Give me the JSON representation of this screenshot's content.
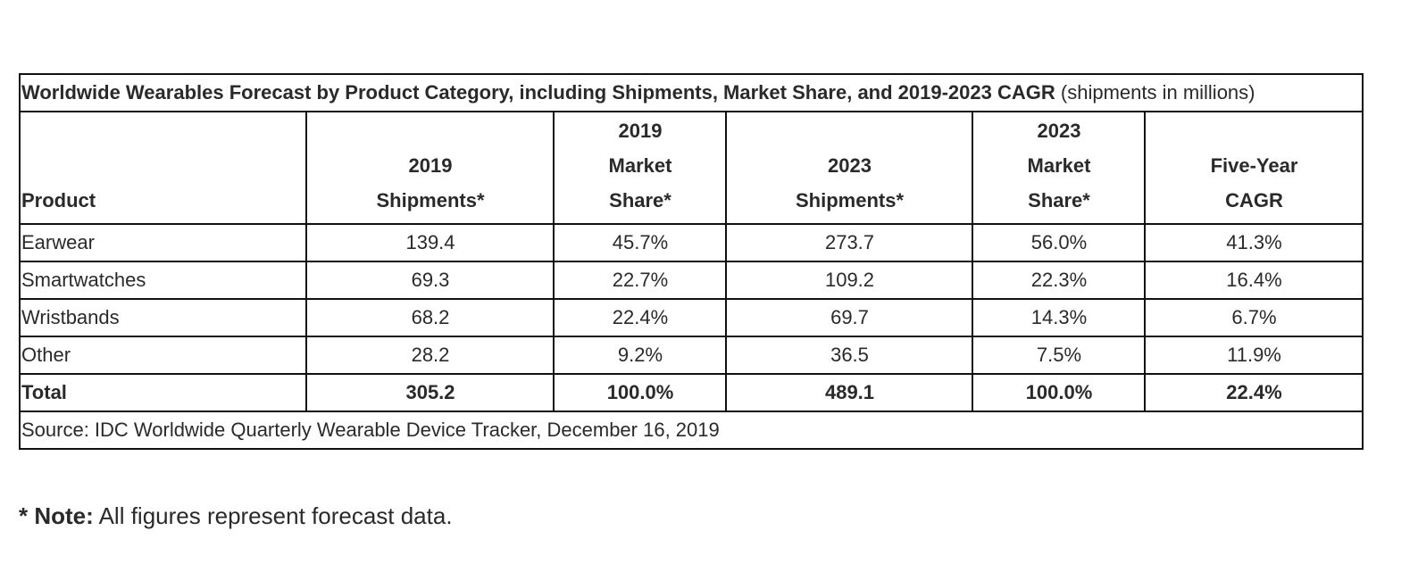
{
  "title": {
    "bold": "Worldwide Wearables Forecast by Product Category, including Shipments, Market Share, and 2019-2023 CAGR",
    "suffix": " (shipments in millions)"
  },
  "headers": {
    "product": "Product",
    "col1": [
      "2019",
      "Shipments*"
    ],
    "col2": [
      "2019",
      "Market",
      "Share*"
    ],
    "col3": [
      "2023",
      "Shipments*"
    ],
    "col4": [
      "2023",
      "Market",
      "Share*"
    ],
    "col5": [
      "Five-Year",
      "CAGR"
    ]
  },
  "rows": [
    {
      "product": "Earwear",
      "ship2019": "139.4",
      "share2019": "45.7%",
      "ship2023": "273.7",
      "share2023": "56.0%",
      "cagr": "41.3%"
    },
    {
      "product": "Smartwatches",
      "ship2019": "69.3",
      "share2019": "22.7%",
      "ship2023": "109.2",
      "share2023": "22.3%",
      "cagr": "16.4%"
    },
    {
      "product": "Wristbands",
      "ship2019": "68.2",
      "share2019": "22.4%",
      "ship2023": "69.7",
      "share2023": "14.3%",
      "cagr": "6.7%"
    },
    {
      "product": "Other",
      "ship2019": "28.2",
      "share2019": "9.2%",
      "ship2023": "36.5",
      "share2023": "7.5%",
      "cagr": "11.9%"
    }
  ],
  "total": {
    "product": "Total",
    "ship2019": "305.2",
    "share2019": "100.0%",
    "ship2023": "489.1",
    "share2023": "100.0%",
    "cagr": "22.4%"
  },
  "source": "Source: IDC Worldwide Quarterly Wearable Device Tracker, December 16, 2019",
  "note": {
    "label": "* Note:",
    "text": " All figures represent forecast data."
  }
}
